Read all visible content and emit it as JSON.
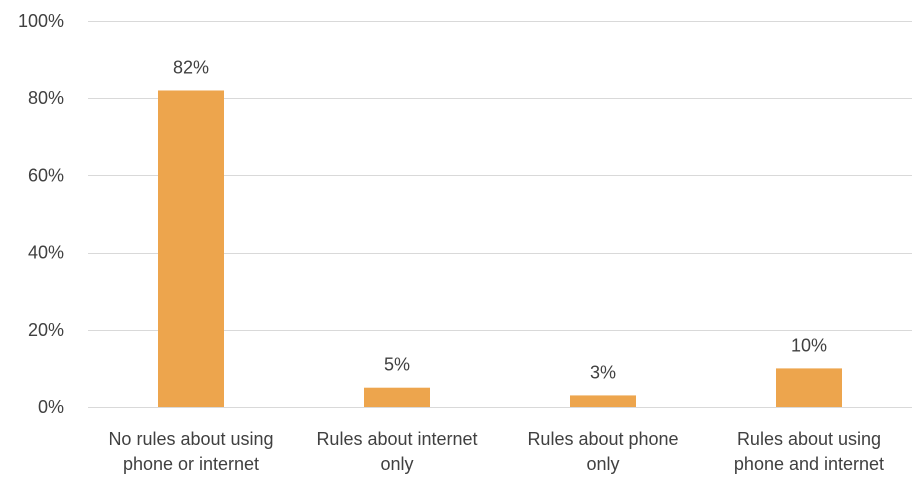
{
  "chart_data": {
    "type": "bar",
    "title": "",
    "xlabel": "",
    "ylabel": "",
    "categories": [
      [
        "No rules about using",
        "phone or internet"
      ],
      [
        "Rules about internet",
        "only"
      ],
      [
        "Rules about phone",
        "only"
      ],
      [
        "Rules about using",
        "phone and internet"
      ]
    ],
    "values": [
      82,
      5,
      3,
      10
    ],
    "value_labels": [
      "82%",
      "5%",
      "3%",
      "10%"
    ],
    "ylim": [
      0,
      100
    ],
    "yticks": [
      0,
      20,
      40,
      60,
      80,
      100
    ],
    "ytick_labels": [
      "0%",
      "20%",
      "40%",
      "60%",
      "80%",
      "100%"
    ],
    "grid": true,
    "legend": "none",
    "colors": {
      "bar": "#EDA54D",
      "grid": "#D9D9D9",
      "text": "#404040"
    }
  }
}
